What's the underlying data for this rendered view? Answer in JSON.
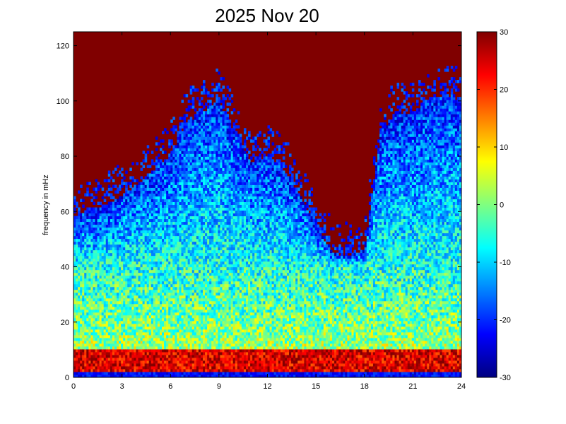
{
  "chart_data": {
    "type": "heatmap",
    "title": "2025 Nov 20",
    "xlabel": "",
    "ylabel": "frequency in mHz",
    "xlim": [
      0,
      24
    ],
    "ylim": [
      0,
      125
    ],
    "x_ticks": [
      0,
      3,
      6,
      9,
      12,
      15,
      18,
      21,
      24
    ],
    "y_ticks": [
      0,
      20,
      40,
      60,
      80,
      100,
      120
    ],
    "colorbar": {
      "range": [
        -30,
        30
      ],
      "ticks": [
        -30,
        -20,
        -10,
        0,
        10,
        20,
        30
      ],
      "colormap": "jet"
    },
    "grid": false,
    "noise_floor_profile": {
      "hours": [
        0,
        2,
        4,
        6,
        7,
        9,
        10,
        11,
        12,
        13,
        14,
        15,
        16,
        17,
        18,
        19,
        20,
        21,
        22,
        23,
        24
      ],
      "upper_freq_mHz": [
        58,
        62,
        70,
        80,
        92,
        100,
        88,
        78,
        80,
        75,
        66,
        55,
        45,
        44,
        46,
        88,
        96,
        95,
        100,
        102,
        100
      ]
    },
    "spectral_levels_dB": [
      {
        "band_mHz": "0-2",
        "level": -22
      },
      {
        "band_mHz": "2-10",
        "level": 24
      },
      {
        "band_mHz": "10-40",
        "level": 2
      },
      {
        "band_mHz": "40-noise floor",
        "level": -18
      },
      {
        "band_mHz": "above noise floor",
        "level": 30
      }
    ]
  }
}
